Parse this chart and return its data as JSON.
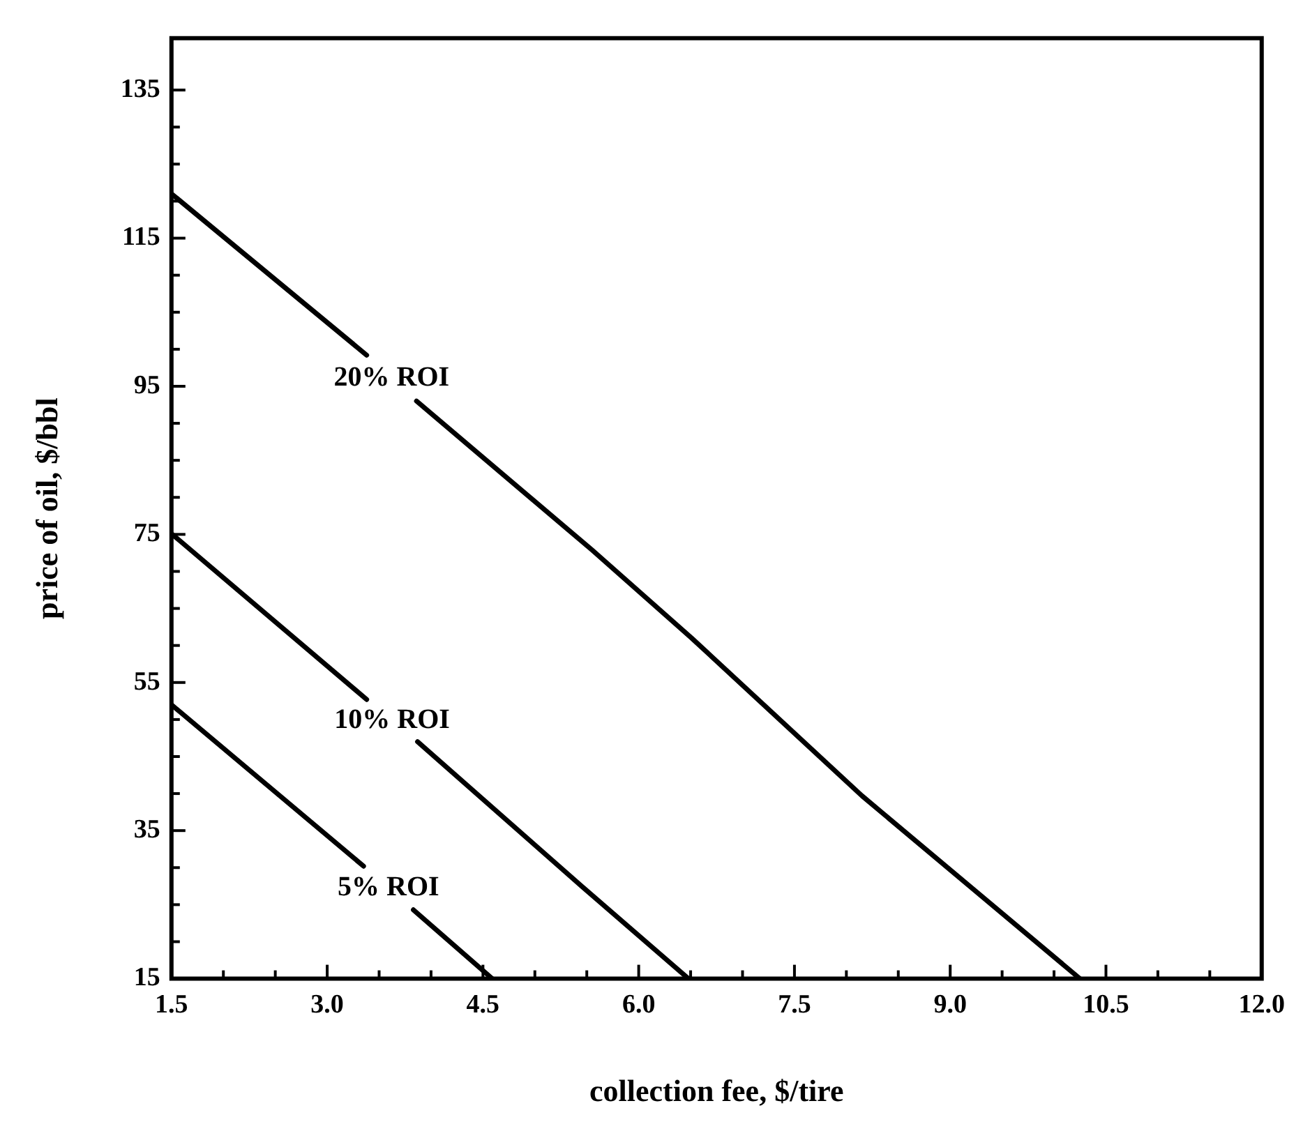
{
  "chart_data": {
    "type": "line",
    "xlabel": "collection fee, $/tire",
    "ylabel": "price of oil, $/bbl",
    "xlim": [
      1.5,
      12.0
    ],
    "ylim": [
      15,
      142
    ],
    "xticks": [
      {
        "value": 1.5,
        "label": "1.5"
      },
      {
        "value": 2.0,
        "label": null
      },
      {
        "value": 2.5,
        "label": null
      },
      {
        "value": 3.0,
        "label": "3.0"
      },
      {
        "value": 3.5,
        "label": null
      },
      {
        "value": 4.0,
        "label": null
      },
      {
        "value": 4.5,
        "label": "4.5"
      },
      {
        "value": 5.0,
        "label": null
      },
      {
        "value": 5.5,
        "label": null
      },
      {
        "value": 6.0,
        "label": "6.0"
      },
      {
        "value": 6.5,
        "label": null
      },
      {
        "value": 7.0,
        "label": null
      },
      {
        "value": 7.5,
        "label": "7.5"
      },
      {
        "value": 8.0,
        "label": null
      },
      {
        "value": 8.5,
        "label": null
      },
      {
        "value": 9.0,
        "label": "9.0"
      },
      {
        "value": 9.5,
        "label": null
      },
      {
        "value": 10.0,
        "label": null
      },
      {
        "value": 10.5,
        "label": "10.5"
      },
      {
        "value": 11.0,
        "label": null
      },
      {
        "value": 11.5,
        "label": null
      },
      {
        "value": 12.0,
        "label": "12.0"
      }
    ],
    "yticks": [
      15,
      {
        "value": 20,
        "label": null
      },
      {
        "value": 25,
        "label": null
      },
      {
        "value": 30,
        "label": null
      },
      35,
      {
        "value": 40,
        "label": null
      },
      {
        "value": 45,
        "label": null
      },
      {
        "value": 50,
        "label": null
      },
      55,
      {
        "value": 60,
        "label": null
      },
      {
        "value": 65,
        "label": null
      },
      {
        "value": 70,
        "label": null
      },
      75,
      {
        "value": 80,
        "label": null
      },
      {
        "value": 85,
        "label": null
      },
      {
        "value": 90,
        "label": null
      },
      95,
      {
        "value": 100,
        "label": null
      },
      {
        "value": 105,
        "label": null
      },
      {
        "value": 110,
        "label": null
      },
      115,
      {
        "value": 120,
        "label": null
      },
      {
        "value": 125,
        "label": null
      },
      {
        "value": 130,
        "label": null
      },
      135
    ],
    "grid": false,
    "marker": "none",
    "line_style": "solid",
    "series": [
      {
        "name": "20% ROI",
        "color": "#000000",
        "x": [
          1.5,
          3.38,
          3.6,
          3.86,
          5.55,
          6.51,
          8.15,
          10.25
        ],
        "values": [
          121,
          99.2,
          null,
          93.0,
          72.9,
          61.0,
          39.7,
          15
        ]
      },
      {
        "name": "10% ROI",
        "color": "#000000",
        "x": [
          1.5,
          3.38,
          3.6,
          3.87,
          5.45,
          6.48
        ],
        "values": [
          75.1,
          52.7,
          null,
          47.0,
          27.5,
          15
        ]
      },
      {
        "name": "5% ROI",
        "color": "#000000",
        "x": [
          1.5,
          3.35,
          3.6,
          3.83,
          4.59
        ],
        "values": [
          52.0,
          30.2,
          null,
          24.3,
          15
        ]
      }
    ]
  }
}
